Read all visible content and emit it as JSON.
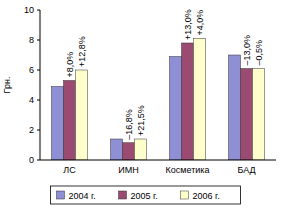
{
  "chart_data": {
    "type": "bar",
    "y_label": "Грн.",
    "categories": [
      "ЛС",
      "ИМН",
      "Косметика",
      "БАД"
    ],
    "series": [
      {
        "name": "2004 г.",
        "color": "#8f8fd6",
        "values": [
          4.9,
          1.4,
          6.9,
          7.0
        ]
      },
      {
        "name": "2005 г.",
        "color": "#9b4a72",
        "values": [
          5.3,
          1.15,
          7.8,
          6.1
        ],
        "annotations": [
          "+8,0%",
          "–16,8%",
          "+13,0%",
          "–13,0%"
        ]
      },
      {
        "name": "2006 г.",
        "color": "#ffffcc",
        "values": [
          6.0,
          1.4,
          8.1,
          6.1
        ],
        "annotations": [
          "+12,8%",
          "+21,5%",
          "+4,0%",
          "–0,5%"
        ]
      }
    ],
    "ylim": [
      0,
      10
    ],
    "yticks": [
      0,
      2,
      4,
      6,
      8,
      10
    ],
    "grid": false,
    "legend": "bottom"
  }
}
